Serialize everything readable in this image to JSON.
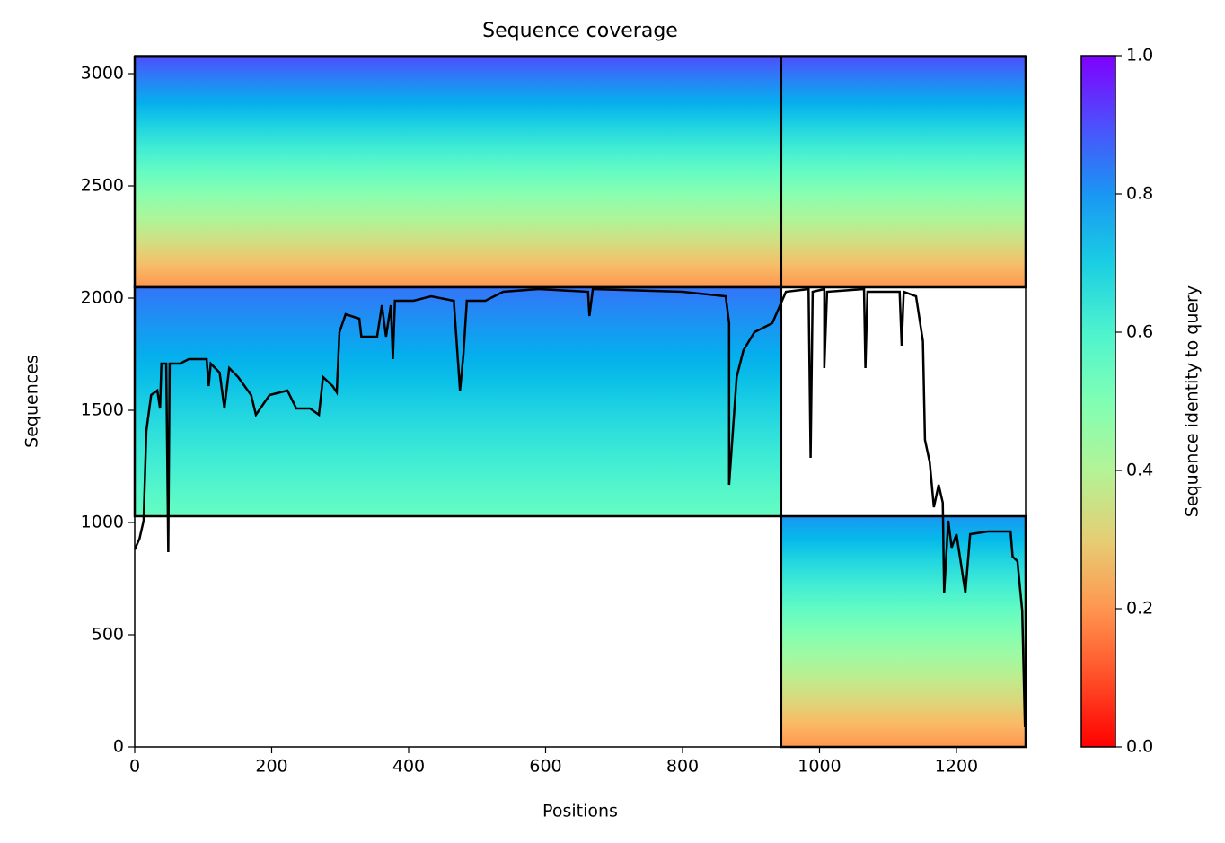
{
  "chart_data": {
    "type": "coverage",
    "title": "Sequence coverage",
    "xlabel": "Positions",
    "ylabel": "Sequences",
    "xlim": [
      0,
      1301
    ],
    "ylim": [
      0,
      3080
    ],
    "xticks": [
      0,
      200,
      400,
      600,
      800,
      1000,
      1200
    ],
    "yticks": [
      0,
      500,
      1000,
      1500,
      2000,
      2500,
      3000
    ],
    "colormap": "rainbow_r",
    "colorbar": {
      "label": "Sequence identity to query",
      "lim": [
        0,
        1
      ],
      "ticks": [
        {
          "value": 0,
          "label": "0.0"
        },
        {
          "value": 0.2,
          "label": "0.2"
        },
        {
          "value": 0.4,
          "label": "0.4"
        },
        {
          "value": 0.6,
          "label": "0.6"
        },
        {
          "value": 0.8,
          "label": "0.8"
        },
        {
          "value": 1,
          "label": "1.0"
        }
      ]
    },
    "blocks": [
      {
        "x": [
          0,
          944
        ],
        "y": [
          2048,
          3075
        ],
        "identity": [
          0.9,
          0.2
        ]
      },
      {
        "x": [
          944,
          1301
        ],
        "y": [
          2048,
          3075
        ],
        "identity": [
          0.9,
          0.2
        ]
      },
      {
        "x": [
          0,
          944
        ],
        "y": [
          1028,
          2048
        ],
        "identity": [
          0.85,
          0.55
        ]
      },
      {
        "x": [
          944,
          1301
        ],
        "y": [
          0,
          1028
        ],
        "identity": [
          0.8,
          0.2
        ]
      }
    ],
    "series": [
      {
        "color": "#000000",
        "x": [
          0,
          7,
          13,
          17,
          24,
          33,
          37,
          39,
          46,
          49,
          51,
          66,
          79,
          105,
          108,
          111,
          124,
          131,
          138,
          151,
          170,
          177,
          197,
          223,
          236,
          256,
          269,
          275,
          289,
          295,
          299,
          308,
          328,
          331,
          354,
          361,
          367,
          374,
          377,
          380,
          407,
          433,
          466,
          475,
          480,
          485,
          512,
          538,
          590,
          662,
          664,
          669,
          800,
          863,
          868,
          868,
          879,
          889,
          905,
          931,
          951,
          984,
          987,
          990,
          1007,
          1007,
          1011,
          1065,
          1067,
          1070,
          1117,
          1120,
          1123,
          1141,
          1151,
          1154,
          1161,
          1167,
          1174,
          1180,
          1182,
          1188,
          1193,
          1200,
          1213,
          1220,
          1246,
          1279,
          1282,
          1289,
          1296,
          1300
        ],
        "values": [
          880,
          928,
          1008,
          1408,
          1568,
          1588,
          1508,
          1708,
          1708,
          868,
          1708,
          1708,
          1728,
          1728,
          1608,
          1708,
          1668,
          1508,
          1688,
          1648,
          1568,
          1480,
          1568,
          1588,
          1508,
          1508,
          1480,
          1648,
          1608,
          1580,
          1848,
          1928,
          1908,
          1828,
          1828,
          1968,
          1828,
          1968,
          1728,
          1988,
          1988,
          2008,
          1988,
          1588,
          1748,
          1988,
          1988,
          2028,
          2040,
          2028,
          1920,
          2040,
          2028,
          2008,
          1888,
          1168,
          1648,
          1768,
          1848,
          1888,
          2028,
          2040,
          1288,
          2028,
          2040,
          1688,
          2028,
          2040,
          1688,
          2028,
          2028,
          1788,
          2028,
          2008,
          1808,
          1368,
          1268,
          1068,
          1168,
          1088,
          688,
          1008,
          888,
          948,
          688,
          948,
          960,
          960,
          848,
          828,
          608,
          88
        ]
      }
    ]
  }
}
